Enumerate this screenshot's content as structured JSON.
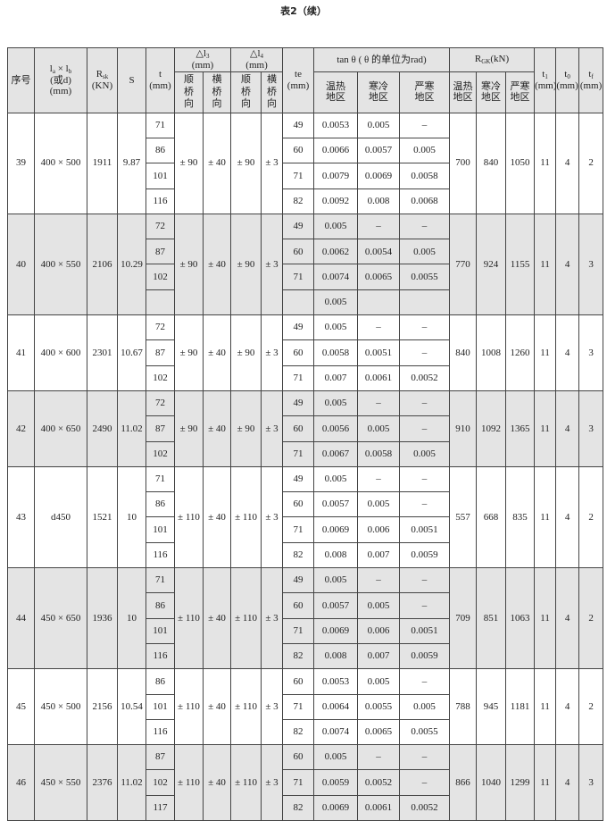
{
  "title": "表2（续）",
  "header": {
    "no": "序号",
    "size_a": "l",
    "size_a_sub": "a",
    "size_x": "×",
    "size_b": "l",
    "size_b_sub": "b",
    "size_or": "(或d)",
    "size_unit": "(mm)",
    "rsk": "R",
    "rsk_sub": "sk",
    "rsk_unit": "(KN)",
    "s": "S",
    "t": "t",
    "t_unit": "(mm)",
    "dl3": "△l",
    "dl3_sub": "3",
    "dl3_unit": "(mm)",
    "dl4": "△l",
    "dl4_sub": "4",
    "dl4_unit": "(mm)",
    "shun": "顺桥向",
    "heng": "横桥向",
    "te": "te",
    "te_unit": "(mm)",
    "tan": "tan θ ( θ 的单位为rad)",
    "rgk": "R",
    "rgk_sub": "GK",
    "rgk_unit": "(kN)",
    "zones": [
      "温热地区",
      "寒冷地区",
      "严寒地区"
    ],
    "t1": "t",
    "t1_sub": "1",
    "t0": "t",
    "t0_sub": "0",
    "tf": "t",
    "tf_sub": "f",
    "mm": "(mm)"
  },
  "groups": [
    {
      "no": "39",
      "size": "400 × 500",
      "rsk": "1911",
      "s": "9.87",
      "dl3": [
        "± 90",
        "± 40"
      ],
      "dl4": [
        "± 90",
        "± 3"
      ],
      "rgk": [
        "700",
        "840",
        "1050"
      ],
      "t1": "11",
      "t0": "4",
      "tf": "2",
      "rows": [
        {
          "t": "71",
          "te": "49",
          "tan": [
            "0.0053",
            "0.005",
            "–"
          ]
        },
        {
          "t": "86",
          "te": "60",
          "tan": [
            "0.0066",
            "0.0057",
            "0.005"
          ]
        },
        {
          "t": "101",
          "te": "71",
          "tan": [
            "0.0079",
            "0.0069",
            "0.0058"
          ]
        },
        {
          "t": "116",
          "te": "82",
          "tan": [
            "0.0092",
            "0.008",
            "0.0068"
          ]
        }
      ]
    },
    {
      "no": "40",
      "size": "400 × 550",
      "rsk": "2106",
      "s": "10.29",
      "dl3": [
        "± 90",
        "± 40"
      ],
      "dl4": [
        "± 90",
        "± 3"
      ],
      "rgk": [
        "770",
        "924",
        "1155"
      ],
      "t1": "11",
      "t0": "4",
      "tf": "3",
      "rows": [
        {
          "t": "72",
          "te": "49",
          "tan": [
            "0.005",
            "–",
            "–"
          ]
        },
        {
          "t": "87",
          "te": "60",
          "tan": [
            "0.0062",
            "0.0054",
            "0.005"
          ]
        },
        {
          "t": "102",
          "te": "71",
          "tan": [
            "0.0074",
            "0.0065",
            "0.0055"
          ]
        },
        {
          "t": "",
          "te": "",
          "tan": [
            "0.005",
            "",
            ""
          ]
        }
      ]
    },
    {
      "no": "41",
      "size": "400 × 600",
      "rsk": "2301",
      "s": "10.67",
      "dl3": [
        "± 90",
        "± 40"
      ],
      "dl4": [
        "± 90",
        "± 3"
      ],
      "rgk": [
        "840",
        "1008",
        "1260"
      ],
      "t1": "11",
      "t0": "4",
      "tf": "3",
      "rows": [
        {
          "t": "72",
          "te": "49",
          "tan": [
            "0.005",
            "–",
            "–"
          ]
        },
        {
          "t": "87",
          "te": "60",
          "tan": [
            "0.0058",
            "0.0051",
            "–"
          ]
        },
        {
          "t": "102",
          "te": "71",
          "tan": [
            "0.007",
            "0.0061",
            "0.0052"
          ]
        }
      ]
    },
    {
      "no": "42",
      "size": "400 × 650",
      "rsk": "2490",
      "s": "11.02",
      "dl3": [
        "± 90",
        "± 40"
      ],
      "dl4": [
        "± 90",
        "± 3"
      ],
      "rgk": [
        "910",
        "1092",
        "1365"
      ],
      "t1": "11",
      "t0": "4",
      "tf": "3",
      "rows": [
        {
          "t": "72",
          "te": "49",
          "tan": [
            "0.005",
            "–",
            "–"
          ]
        },
        {
          "t": "87",
          "te": "60",
          "tan": [
            "0.0056",
            "0.005",
            "–"
          ]
        },
        {
          "t": "102",
          "te": "71",
          "tan": [
            "0.0067",
            "0.0058",
            "0.005"
          ]
        }
      ]
    },
    {
      "no": "43",
      "size": "d450",
      "rsk": "1521",
      "s": "10",
      "dl3": [
        "± 110",
        "± 40"
      ],
      "dl4": [
        "± 110",
        "± 3"
      ],
      "rgk": [
        "557",
        "668",
        "835"
      ],
      "t1": "11",
      "t0": "4",
      "tf": "2",
      "rows": [
        {
          "t": "71",
          "te": "49",
          "tan": [
            "0.005",
            "–",
            "–"
          ]
        },
        {
          "t": "86",
          "te": "60",
          "tan": [
            "0.0057",
            "0.005",
            "–"
          ]
        },
        {
          "t": "101",
          "te": "71",
          "tan": [
            "0.0069",
            "0.006",
            "0.0051"
          ]
        },
        {
          "t": "116",
          "te": "82",
          "tan": [
            "0.008",
            "0.007",
            "0.0059"
          ]
        }
      ]
    },
    {
      "no": "44",
      "size": "450 × 650",
      "rsk": "1936",
      "s": "10",
      "dl3": [
        "± 110",
        "± 40"
      ],
      "dl4": [
        "± 110",
        "± 3"
      ],
      "rgk": [
        "709",
        "851",
        "1063"
      ],
      "t1": "11",
      "t0": "4",
      "tf": "2",
      "rows": [
        {
          "t": "71",
          "te": "49",
          "tan": [
            "0.005",
            "–",
            "–"
          ]
        },
        {
          "t": "86",
          "te": "60",
          "tan": [
            "0.0057",
            "0.005",
            "–"
          ]
        },
        {
          "t": "101",
          "te": "71",
          "tan": [
            "0.0069",
            "0.006",
            "0.0051"
          ]
        },
        {
          "t": "116",
          "te": "82",
          "tan": [
            "0.008",
            "0.007",
            "0.0059"
          ]
        }
      ]
    },
    {
      "no": "45",
      "size": "450 × 500",
      "rsk": "2156",
      "s": "10.54",
      "dl3": [
        "± 110",
        "± 40"
      ],
      "dl4": [
        "± 110",
        "± 3"
      ],
      "rgk": [
        "788",
        "945",
        "1181"
      ],
      "t1": "11",
      "t0": "4",
      "tf": "2",
      "rows": [
        {
          "t": "86",
          "te": "60",
          "tan": [
            "0.0053",
            "0.005",
            "–"
          ]
        },
        {
          "t": "101",
          "te": "71",
          "tan": [
            "0.0064",
            "0.0055",
            "0.005"
          ]
        },
        {
          "t": "116",
          "te": "82",
          "tan": [
            "0.0074",
            "0.0065",
            "0.0055"
          ]
        }
      ]
    },
    {
      "no": "46",
      "size": "450 × 550",
      "rsk": "2376",
      "s": "11.02",
      "dl3": [
        "± 110",
        "± 40"
      ],
      "dl4": [
        "± 110",
        "± 3"
      ],
      "rgk": [
        "866",
        "1040",
        "1299"
      ],
      "t1": "11",
      "t0": "4",
      "tf": "3",
      "rows": [
        {
          "t": "87",
          "te": "60",
          "tan": [
            "0.005",
            "–",
            "–"
          ]
        },
        {
          "t": "102",
          "te": "71",
          "tan": [
            "0.0059",
            "0.0052",
            "–"
          ]
        },
        {
          "t": "117",
          "te": "82",
          "tan": [
            "0.0069",
            "0.0061",
            "0.0052"
          ]
        }
      ]
    }
  ]
}
